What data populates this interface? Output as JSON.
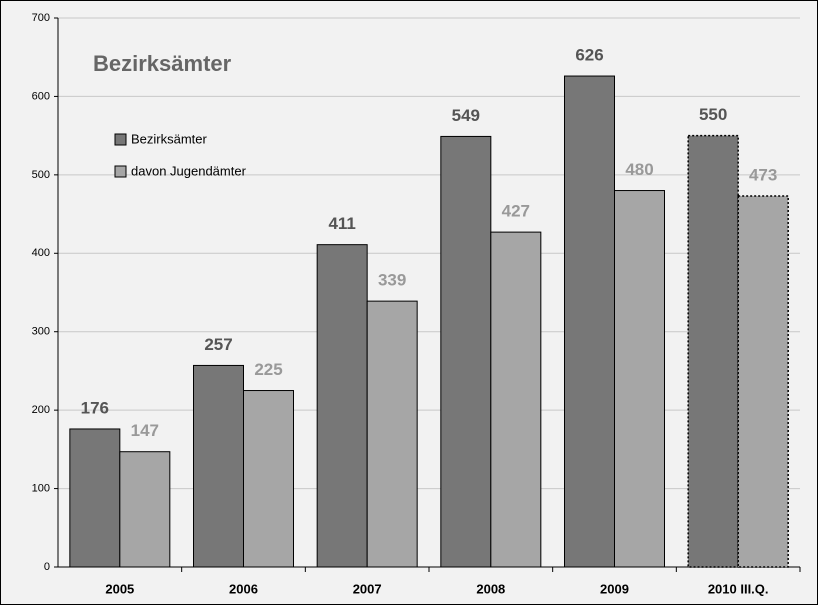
{
  "chart_data": {
    "type": "bar",
    "title": "Bezirksämter",
    "categories": [
      "2005",
      "2006",
      "2007",
      "2008",
      "2009",
      "2010 III.Q."
    ],
    "series": [
      {
        "name": "Bezirksämter",
        "color": "#777777",
        "label_color": "#555555",
        "values": [
          176,
          257,
          411,
          549,
          626,
          550
        ]
      },
      {
        "name": "davon Jugendämter",
        "color": "#a6a6a6",
        "label_color": "#999999",
        "values": [
          147,
          225,
          339,
          427,
          480,
          473
        ]
      }
    ],
    "ylim": [
      0,
      700
    ],
    "yticks": [
      0,
      100,
      200,
      300,
      400,
      500,
      600,
      700
    ],
    "grid": true,
    "legend": "upper left",
    "dotted_last_category": true
  }
}
